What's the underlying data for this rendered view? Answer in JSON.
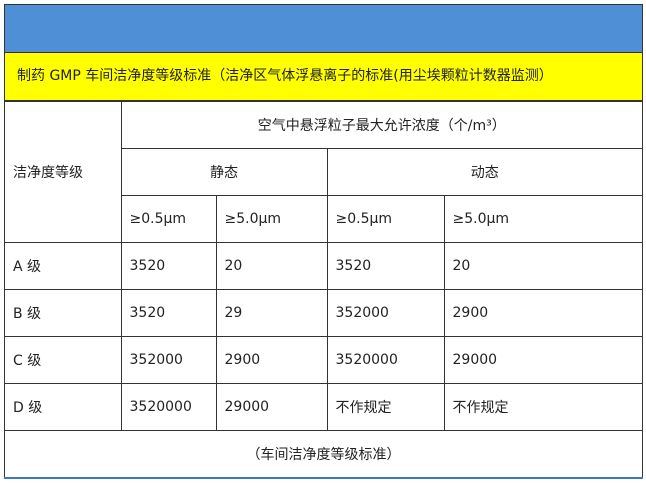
{
  "title": "制药 GMP 车间洁净度等级标准（洁净区气体浮悬离子的标准(用尘埃颗粒计数器监测）",
  "colors": {
    "header_bar": "#4f8fd6",
    "title_bg": "#ffff00"
  },
  "table": {
    "grade_header": "洁净度等级",
    "concentration_header": "空气中悬浮粒子最大允许浓度（个/m³）",
    "static_header": "静态",
    "dynamic_header": "动态",
    "size_headers": [
      "≥0.5μm",
      "≥5.0μm",
      "≥0.5μm",
      "≥5.0μm"
    ],
    "rows": [
      {
        "grade": "A 级",
        "values": [
          "3520",
          "20",
          "3520",
          "20"
        ]
      },
      {
        "grade": "B 级",
        "values": [
          "3520",
          "29",
          "352000",
          "2900"
        ]
      },
      {
        "grade": "C 级",
        "values": [
          "352000",
          "2900",
          "3520000",
          "29000"
        ]
      },
      {
        "grade": "D 级",
        "values": [
          "3520000",
          "29000",
          "不作规定",
          "不作规定"
        ]
      }
    ],
    "caption": "（车间洁净度等级标准）"
  }
}
